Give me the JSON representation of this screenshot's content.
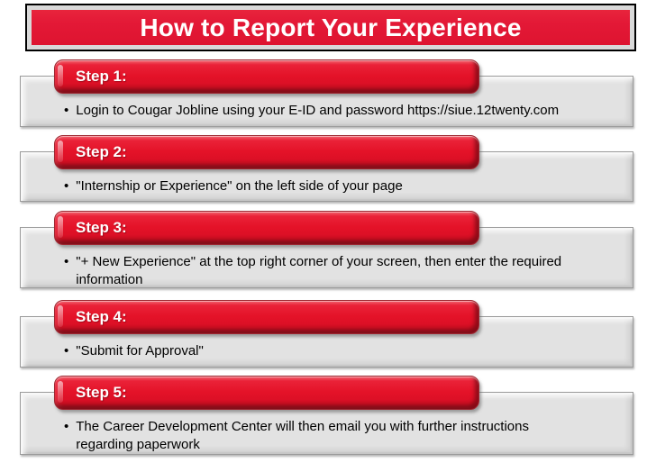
{
  "page": {
    "title": "How to Report Your Experience"
  },
  "bullet_glyph": "•",
  "steps": [
    {
      "label": "Step 1:",
      "text": "Login to Cougar Jobline using your E-ID and password https://siue.12twenty.com"
    },
    {
      "label": "Step 2:",
      "text": "\"Internship or Experience\" on the left side of your page"
    },
    {
      "label": "Step 3:",
      "text": "\"+ New Experience\" at the top right corner of your screen, then enter the required\ninformation"
    },
    {
      "label": "Step 4:",
      "text": "\"Submit for Approval\""
    },
    {
      "label": "Step 5:",
      "text": "The Career Development Center will then email you with further instructions\nregarding paperwork"
    }
  ],
  "colors": {
    "banner_red": "#e31836",
    "pill_red": "#e41228",
    "pill_shadow_red": "#8f1220",
    "frame_silver": "#d9d9d9",
    "banner_border_black": "#000000",
    "box_gray": "#e2e2e2",
    "box_border_gray": "#9b9b9b",
    "body_text": "#000000",
    "title_text": "#ffffff"
  }
}
